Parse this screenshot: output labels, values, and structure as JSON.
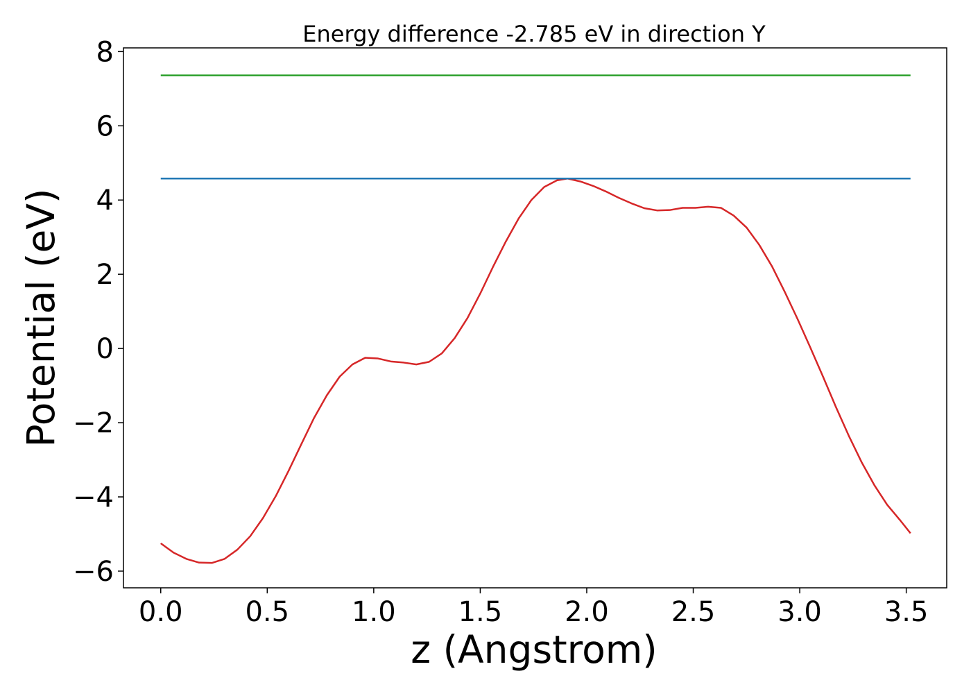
{
  "chart_data": {
    "type": "line",
    "title": "Energy difference -2.785 eV in direction Y",
    "xlabel": "z (Angstrom)",
    "ylabel": "Potential (eV)",
    "xlim": [
      -0.175,
      3.69
    ],
    "ylim": [
      -6.45,
      8.1
    ],
    "xticks": [
      0.0,
      0.5,
      1.0,
      1.5,
      2.0,
      2.5,
      3.0,
      3.5
    ],
    "xtick_labels": [
      "0.0",
      "0.5",
      "1.0",
      "1.5",
      "2.0",
      "2.5",
      "3.0",
      "3.5"
    ],
    "yticks": [
      -6,
      -4,
      -2,
      0,
      2,
      4,
      6,
      8
    ],
    "ytick_labels": [
      "−6",
      "−4",
      "−2",
      "0",
      "2",
      "4",
      "6",
      "8"
    ],
    "grid": false,
    "series": [
      {
        "color": "#d62728",
        "x": [
          0.0,
          0.06,
          0.12,
          0.18,
          0.24,
          0.3,
          0.36,
          0.42,
          0.48,
          0.54,
          0.6,
          0.66,
          0.72,
          0.78,
          0.84,
          0.9,
          0.96,
          1.02,
          1.08,
          1.14,
          1.2,
          1.26,
          1.32,
          1.38,
          1.44,
          1.5,
          1.56,
          1.62,
          1.68,
          1.74,
          1.8,
          1.86,
          1.91,
          1.97,
          2.03,
          2.09,
          2.15,
          2.21,
          2.27,
          2.33,
          2.39,
          2.45,
          2.51,
          2.57,
          2.63,
          2.69,
          2.75,
          2.81,
          2.87,
          2.93,
          2.99,
          3.05,
          3.11,
          3.17,
          3.23,
          3.29,
          3.35,
          3.41,
          3.47,
          3.52
        ],
        "y": [
          -5.25,
          -5.5,
          -5.67,
          -5.77,
          -5.78,
          -5.67,
          -5.42,
          -5.06,
          -4.57,
          -3.98,
          -3.3,
          -2.58,
          -1.87,
          -1.26,
          -0.76,
          -0.43,
          -0.25,
          -0.27,
          -0.35,
          -0.38,
          -0.43,
          -0.36,
          -0.13,
          0.28,
          0.82,
          1.48,
          2.2,
          2.88,
          3.5,
          4.0,
          4.35,
          4.53,
          4.58,
          4.5,
          4.38,
          4.23,
          4.06,
          3.91,
          3.78,
          3.72,
          3.73,
          3.79,
          3.79,
          3.82,
          3.79,
          3.58,
          3.26,
          2.79,
          2.21,
          1.52,
          0.79,
          0.02,
          -0.77,
          -1.58,
          -2.35,
          -3.06,
          -3.68,
          -4.21,
          -4.62,
          -4.98
        ]
      },
      {
        "color": "#1f77b4",
        "x": [
          0.0,
          3.52
        ],
        "y": [
          4.58,
          4.58
        ]
      },
      {
        "color": "#2ca02c",
        "x": [
          0.0,
          3.52
        ],
        "y": [
          7.36,
          7.36
        ]
      }
    ]
  }
}
